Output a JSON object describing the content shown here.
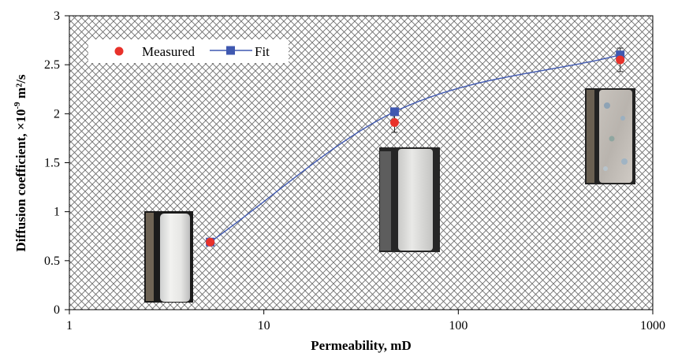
{
  "chart_data": {
    "type": "scatter",
    "x_scale": "log",
    "xlabel": "Permeability, mD",
    "ylabel_main": "Diffusion coefficient, ×10",
    "ylabel_exp": "-9",
    "ylabel_unit": " m²/s",
    "xlim": [
      1,
      1000
    ],
    "ylim": [
      0,
      3
    ],
    "x_ticks": [
      1,
      10,
      100,
      1000
    ],
    "x_tick_labels": [
      "1",
      "10",
      "100",
      "1000"
    ],
    "y_ticks": [
      0,
      0.5,
      1,
      1.5,
      2,
      2.5,
      3
    ],
    "y_tick_labels": [
      "0",
      "0.5",
      "1",
      "1.5",
      "2",
      "2.5",
      "3"
    ],
    "legend_position": "top-left",
    "series": [
      {
        "name": "Measured",
        "kind": "markers",
        "marker": "circle",
        "color": "#e8312a",
        "x": [
          5.3,
          47,
          680
        ],
        "y": [
          0.69,
          1.91,
          2.55
        ],
        "error": [
          0.03,
          0.1,
          0.12
        ]
      },
      {
        "name": "Fit",
        "kind": "line+markers",
        "marker": "square",
        "color": "#3f58b0",
        "x": [
          5.3,
          47,
          680
        ],
        "y": [
          0.69,
          2.02,
          2.6
        ]
      }
    ],
    "background": "cross-hatch"
  }
}
